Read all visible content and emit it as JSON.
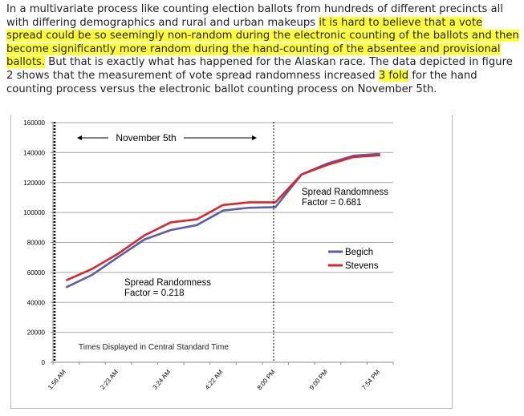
{
  "paragraph": {
    "seg1": "In a multivariate process like counting election ballots from hundreds of different precincts all with differing demographics and rural and urban makeups ",
    "seg2": "it is hard to believe that a vote spread could be so seemingly non-random during the electronic counting of the ballots and then become significantly more random during the hand-counting of the absentee and provisional ballots.",
    "seg3": " But that is exactly what has happened for the Alaskan race. The data depicted in figure 2 shows that the measurement of vote spread randomness increased ",
    "seg4": "3 fold",
    "seg5": " for the hand counting process versus the electronic ballot counting process on November 5th.",
    "highlight_color": "#ffff33"
  },
  "chart_data": {
    "type": "line",
    "categories": [
      "1:56 AM",
      "",
      "2:23 AM",
      "",
      "3:24 AM",
      "",
      "4:22 AM",
      "",
      "8:00 PM",
      "",
      "9:00 PM",
      "",
      "7:54 PM"
    ],
    "series": [
      {
        "name": "Begich",
        "color": "#5b5ea6",
        "values": [
          50000,
          58400,
          70400,
          82000,
          88300,
          91600,
          101300,
          103200,
          103600,
          125400,
          132800,
          138000,
          139200
        ]
      },
      {
        "name": "Stevens",
        "color": "#d9262e",
        "values": [
          54700,
          62400,
          72600,
          84800,
          93400,
          95500,
          105000,
          106800,
          106800,
          125400,
          131900,
          137100,
          138200
        ]
      }
    ],
    "yticks": [
      "0",
      "20000",
      "40000",
      "60000",
      "80000",
      "100000",
      "120000",
      "140000",
      "160000"
    ],
    "ylim": [
      0,
      160000
    ],
    "grid": true,
    "legend": "right",
    "annotations": {
      "date_label": "November 5th",
      "left_factor_line1": "Spread Randomness",
      "left_factor_line2": "Factor = 0.218",
      "right_factor_line1": "Spread Randomness",
      "right_factor_line2": "Factor = 0.681",
      "timezone_note": "Times Displayed in Central Standard Time"
    }
  }
}
